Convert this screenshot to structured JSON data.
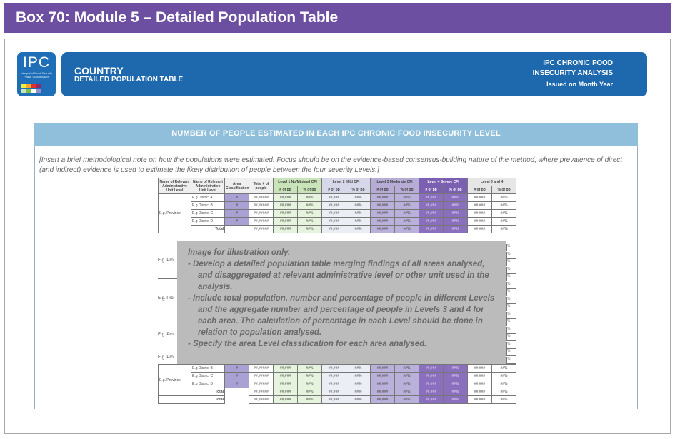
{
  "box_title": "Box 70: Module 5 – Detailed Population Table",
  "logo": {
    "letters": "IPC",
    "tagline": "Integrated Food Security Phase Classification",
    "squares": [
      "#f4ee3b",
      "#f7a630",
      "#e0302e",
      "#8a2a6c",
      "#c9e4b8",
      "#7ec04a",
      "#ffffff",
      "#9b8ccc"
    ]
  },
  "header": {
    "country": "COUNTRY",
    "subtitle": "DETAILED POPULATION TABLE",
    "right_line1": "IPC CHRONIC FOOD",
    "right_line2": "INSECURITY ANALYSIS",
    "issued": "Issued on Month Year"
  },
  "section_title": "NUMBER OF PEOPLE ESTIMATED IN  EACH IPC CHRONIC FOOD INSECURITY LEVEL",
  "method_note": "[Insert a brief methodological note on how the populations were estimated. Focus should be on the evidence-based consensus-building nature of the method, where prevalence of direct (and indirect) evidence is used to estimate the likely distribution of people between the four severity Levels.]",
  "table": {
    "headers": {
      "admin_unit": "Name of Relevant Administrative Unit Level",
      "admin_unit2": "Name of Relevant Administrative Unit Level",
      "area_class": "Area Classification",
      "total_pop": "Total # of people",
      "level1": "Level 1 No/Minimal CFI",
      "level2": "Level 2 Mild CFI",
      "level3": "Level 3 Moderate CFI",
      "level4": "Level 4 Severe CFI",
      "level34": "Level 3 and 4",
      "num_pp": "# of pp",
      "pct_pp": "% of pp"
    },
    "province": "E.g. Province",
    "districts": [
      "E.g District A",
      "E.g District B",
      "E.g District C",
      "E.g District D"
    ],
    "area_mark": "#",
    "total_mark": "##,#####",
    "num_mark": "##,###",
    "pct_mark": "##%",
    "total_label": "Total",
    "bottom_districts": [
      "E.g District B",
      "E.g District C",
      "E.g District D"
    ],
    "grand_total_label": "Total"
  },
  "overlay": {
    "heading": "Image for illustration only.",
    "bullets": [
      "Develop a detailed population table merging findings of all areas analysed, and disaggregated at relevant administrative level or other unit used in the analysis.",
      "Include total population, number and percentage of people in different Levels and the aggregate number and percentage of people in Levels 3 and 4 for each area. The calculation of percentage in each Level should be done in relation to population analysed.",
      "Specify the area Level classification for each area analysed."
    ]
  },
  "hidden_provinces": [
    "E.g. Pro",
    "E.g. Pro",
    "E.g. Pro",
    "E.g. Pro"
  ],
  "right_edge_mark": "%"
}
